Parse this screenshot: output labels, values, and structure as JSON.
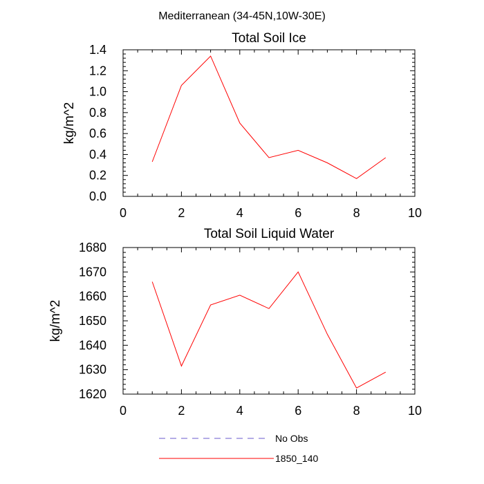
{
  "main_title": "Mediterranean (34-45N,10W-30E)",
  "legend": [
    {
      "label": "No Obs",
      "color": "#6a5acd",
      "style": "dashed"
    },
    {
      "label": "1850_140",
      "color": "#ff0000",
      "style": "solid"
    }
  ],
  "chart_data": [
    {
      "type": "line",
      "title": "Total Soil Ice",
      "xlabel": "",
      "ylabel": "kg/m^2",
      "xlim": [
        0,
        10
      ],
      "ylim": [
        0,
        1.4
      ],
      "x_ticks": [
        "0",
        "2",
        "4",
        "6",
        "8",
        "10"
      ],
      "y_ticks": [
        "0.0",
        "0.2",
        "0.4",
        "0.6",
        "0.8",
        "1.0",
        "1.2",
        "1.4"
      ],
      "grid": false,
      "series": [
        {
          "name": "1850_140",
          "color": "#ff0000",
          "x": [
            1,
            2,
            3,
            4,
            5,
            6,
            7,
            8,
            9
          ],
          "y": [
            0.33,
            1.06,
            1.34,
            0.7,
            0.37,
            0.44,
            0.32,
            0.17,
            0.37
          ]
        }
      ]
    },
    {
      "type": "line",
      "title": "Total Soil Liquid Water",
      "xlabel": "",
      "ylabel": "kg/m^2",
      "xlim": [
        0,
        10
      ],
      "ylim": [
        1620,
        1680
      ],
      "x_ticks": [
        "0",
        "2",
        "4",
        "6",
        "8",
        "10"
      ],
      "y_ticks": [
        "1620",
        "1630",
        "1640",
        "1650",
        "1660",
        "1670",
        "1680"
      ],
      "grid": false,
      "series": [
        {
          "name": "1850_140",
          "color": "#ff0000",
          "x": [
            1,
            2,
            3,
            4,
            5,
            6,
            7,
            8,
            9
          ],
          "y": [
            1666,
            1631.5,
            1656.5,
            1660.5,
            1655,
            1670,
            1644.5,
            1622.5,
            1629
          ]
        }
      ]
    }
  ]
}
